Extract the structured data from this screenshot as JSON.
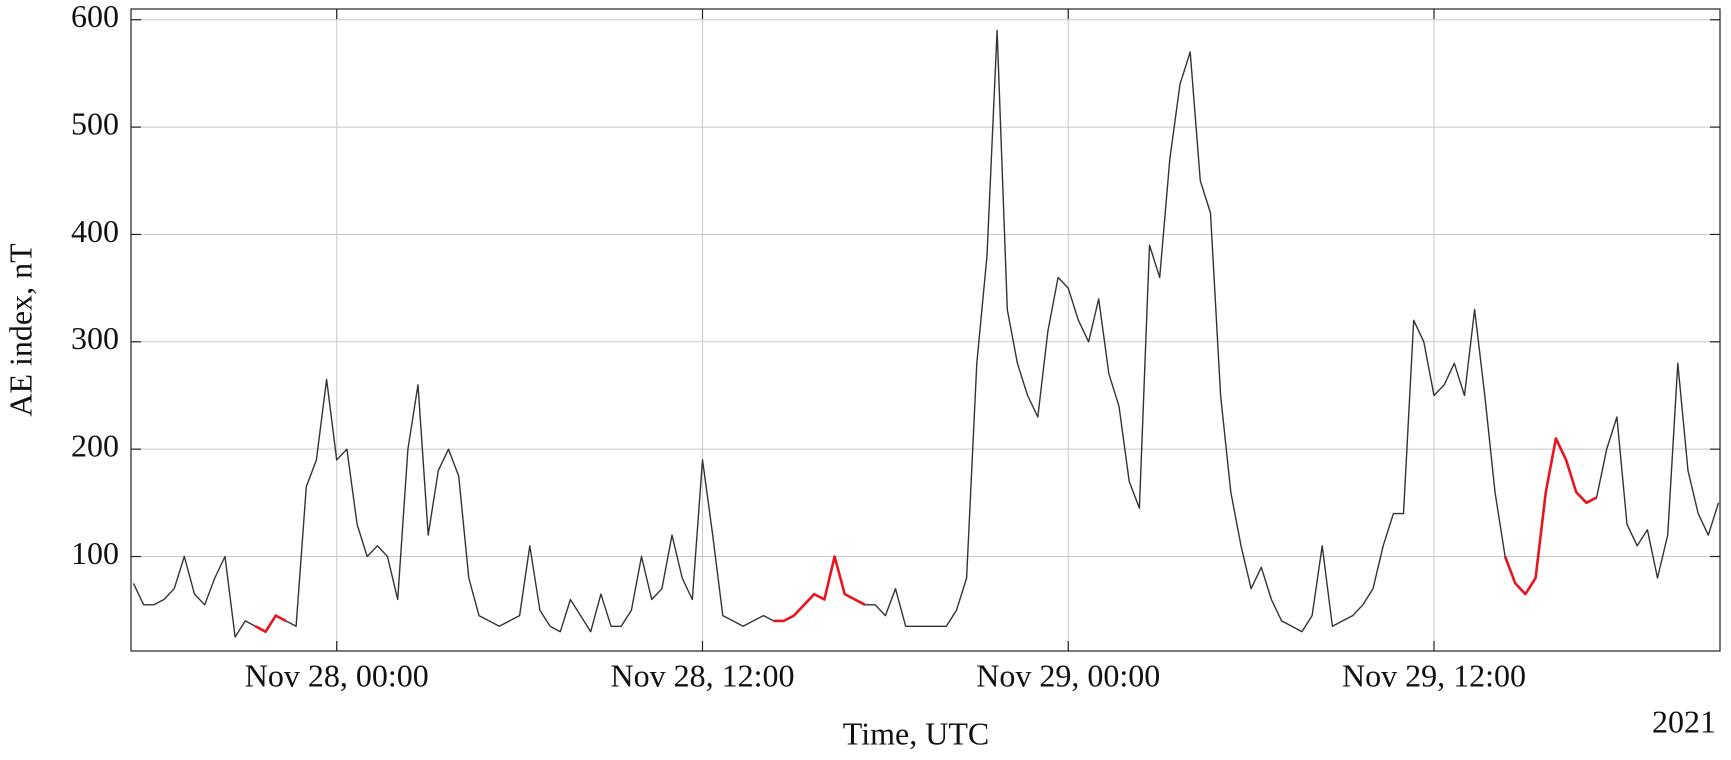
{
  "chart_data": {
    "type": "line",
    "ylabel": "AE index, nT",
    "xlabel": "Time, UTC",
    "xaxis_note": "2021",
    "ylim": [
      12,
      610
    ],
    "yticks": [
      100,
      200,
      300,
      400,
      500,
      600
    ],
    "xlim": [
      "2021-11-27T17:15",
      "2021-11-29T21:23"
    ],
    "xticks": [
      {
        "value": "2021-11-28T00:00",
        "label": "Nov 28, 00:00"
      },
      {
        "value": "2021-11-28T12:00",
        "label": "Nov 28, 12:00"
      },
      {
        "value": "2021-11-29T00:00",
        "label": "Nov 29, 00:00"
      },
      {
        "value": "2021-11-29T12:00",
        "label": "Nov 29, 12:00"
      }
    ],
    "grid": true,
    "x": [
      "2021-11-27T17:20",
      "2021-11-27T17:40",
      "2021-11-27T18:00",
      "2021-11-27T18:20",
      "2021-11-27T18:40",
      "2021-11-27T19:00",
      "2021-11-27T19:20",
      "2021-11-27T19:40",
      "2021-11-27T20:00",
      "2021-11-27T20:20",
      "2021-11-27T20:40",
      "2021-11-27T21:00",
      "2021-11-27T21:20",
      "2021-11-27T21:40",
      "2021-11-27T22:00",
      "2021-11-27T22:20",
      "2021-11-27T22:40",
      "2021-11-27T23:00",
      "2021-11-27T23:20",
      "2021-11-27T23:40",
      "2021-11-28T00:00",
      "2021-11-28T00:20",
      "2021-11-28T00:40",
      "2021-11-28T01:00",
      "2021-11-28T01:20",
      "2021-11-28T01:40",
      "2021-11-28T02:00",
      "2021-11-28T02:20",
      "2021-11-28T02:40",
      "2021-11-28T03:00",
      "2021-11-28T03:20",
      "2021-11-28T03:40",
      "2021-11-28T04:00",
      "2021-11-28T04:20",
      "2021-11-28T04:40",
      "2021-11-28T05:00",
      "2021-11-28T05:20",
      "2021-11-28T05:40",
      "2021-11-28T06:00",
      "2021-11-28T06:20",
      "2021-11-28T06:40",
      "2021-11-28T07:00",
      "2021-11-28T07:20",
      "2021-11-28T07:40",
      "2021-11-28T08:00",
      "2021-11-28T08:20",
      "2021-11-28T08:40",
      "2021-11-28T09:00",
      "2021-11-28T09:20",
      "2021-11-28T09:40",
      "2021-11-28T10:00",
      "2021-11-28T10:20",
      "2021-11-28T10:40",
      "2021-11-28T11:00",
      "2021-11-28T11:20",
      "2021-11-28T11:40",
      "2021-11-28T12:00",
      "2021-11-28T12:20",
      "2021-11-28T12:40",
      "2021-11-28T13:00",
      "2021-11-28T13:20",
      "2021-11-28T13:40",
      "2021-11-28T14:00",
      "2021-11-28T14:20",
      "2021-11-28T14:40",
      "2021-11-28T15:00",
      "2021-11-28T15:20",
      "2021-11-28T15:40",
      "2021-11-28T16:00",
      "2021-11-28T16:20",
      "2021-11-28T16:40",
      "2021-11-28T17:00",
      "2021-11-28T17:20",
      "2021-11-28T17:40",
      "2021-11-28T18:00",
      "2021-11-28T18:20",
      "2021-11-28T18:40",
      "2021-11-28T19:00",
      "2021-11-28T19:20",
      "2021-11-28T19:40",
      "2021-11-28T20:00",
      "2021-11-28T20:20",
      "2021-11-28T20:40",
      "2021-11-28T21:00",
      "2021-11-28T21:20",
      "2021-11-28T21:40",
      "2021-11-28T22:00",
      "2021-11-28T22:20",
      "2021-11-28T22:40",
      "2021-11-28T23:00",
      "2021-11-28T23:20",
      "2021-11-28T23:40",
      "2021-11-29T00:00",
      "2021-11-29T00:20",
      "2021-11-29T00:40",
      "2021-11-29T01:00",
      "2021-11-29T01:20",
      "2021-11-29T01:40",
      "2021-11-29T02:00",
      "2021-11-29T02:20",
      "2021-11-29T02:40",
      "2021-11-29T03:00",
      "2021-11-29T03:20",
      "2021-11-29T03:40",
      "2021-11-29T04:00",
      "2021-11-29T04:20",
      "2021-11-29T04:40",
      "2021-11-29T05:00",
      "2021-11-29T05:20",
      "2021-11-29T05:40",
      "2021-11-29T06:00",
      "2021-11-29T06:20",
      "2021-11-29T06:40",
      "2021-11-29T07:00",
      "2021-11-29T07:20",
      "2021-11-29T07:40",
      "2021-11-29T08:00",
      "2021-11-29T08:20",
      "2021-11-29T08:40",
      "2021-11-29T09:00",
      "2021-11-29T09:20",
      "2021-11-29T09:40",
      "2021-11-29T10:00",
      "2021-11-29T10:20",
      "2021-11-29T10:40",
      "2021-11-29T11:00",
      "2021-11-29T11:20",
      "2021-11-29T11:40",
      "2021-11-29T12:00",
      "2021-11-29T12:20",
      "2021-11-29T12:40",
      "2021-11-29T13:00",
      "2021-11-29T13:20",
      "2021-11-29T13:40",
      "2021-11-29T14:00",
      "2021-11-29T14:20",
      "2021-11-29T14:40",
      "2021-11-29T15:00",
      "2021-11-29T15:20",
      "2021-11-29T15:40",
      "2021-11-29T16:00",
      "2021-11-29T16:20",
      "2021-11-29T16:40",
      "2021-11-29T17:00",
      "2021-11-29T17:20",
      "2021-11-29T17:40",
      "2021-11-29T18:00",
      "2021-11-29T18:20",
      "2021-11-29T18:40",
      "2021-11-29T19:00",
      "2021-11-29T19:20",
      "2021-11-29T19:40",
      "2021-11-29T20:00",
      "2021-11-29T20:20",
      "2021-11-29T20:40",
      "2021-11-29T21:00",
      "2021-11-29T21:20"
    ],
    "series": [
      {
        "color": "#333333",
        "values": [
          75,
          55,
          55,
          60,
          70,
          100,
          65,
          55,
          80,
          100,
          25,
          40,
          35,
          30,
          45,
          40,
          35,
          165,
          190,
          265,
          190,
          200,
          130,
          100,
          110,
          100,
          60,
          200,
          260,
          120,
          180,
          200,
          175,
          80,
          45,
          40,
          35,
          40,
          45,
          110,
          50,
          35,
          30,
          60,
          45,
          30,
          65,
          35,
          35,
          50,
          100,
          60,
          70,
          120,
          80,
          60,
          190,
          120,
          45,
          40,
          35,
          40,
          45,
          40,
          40,
          45,
          55,
          65,
          60,
          100,
          65,
          60,
          55,
          55,
          45,
          70,
          35,
          35,
          35,
          35,
          35,
          50,
          80,
          280,
          380,
          590,
          330,
          280,
          250,
          230,
          310,
          360,
          350,
          320,
          300,
          340,
          270,
          240,
          170,
          145,
          390,
          360,
          470,
          540,
          570,
          450,
          420,
          250,
          160,
          110,
          70,
          90,
          60,
          40,
          35,
          30,
          45,
          110,
          35,
          40,
          45,
          55,
          70,
          110,
          140,
          140,
          320,
          300,
          250,
          260,
          280,
          250,
          330,
          250,
          160,
          100,
          75,
          65,
          80,
          160,
          210,
          190,
          160,
          150,
          155,
          200,
          230,
          130,
          110,
          125,
          80,
          120,
          280,
          180,
          140,
          120,
          150
        ]
      },
      {
        "color": "#e8141e",
        "values": [
          null,
          null,
          null,
          null,
          null,
          null,
          null,
          null,
          null,
          null,
          null,
          null,
          35,
          30,
          45,
          40,
          null,
          null,
          null,
          null,
          null,
          null,
          null,
          null,
          null,
          null,
          null,
          null,
          null,
          null,
          null,
          null,
          null,
          null,
          null,
          null,
          null,
          null,
          null,
          null,
          null,
          null,
          null,
          null,
          null,
          null,
          null,
          null,
          null,
          null,
          null,
          null,
          null,
          null,
          null,
          null,
          null,
          null,
          null,
          null,
          null,
          null,
          null,
          40,
          40,
          45,
          55,
          65,
          60,
          100,
          65,
          60,
          55,
          null,
          null,
          null,
          null,
          null,
          null,
          null,
          null,
          null,
          null,
          null,
          null,
          null,
          null,
          null,
          null,
          null,
          null,
          null,
          null,
          null,
          null,
          null,
          null,
          null,
          null,
          null,
          null,
          null,
          null,
          null,
          null,
          null,
          null,
          null,
          null,
          null,
          null,
          null,
          null,
          null,
          null,
          null,
          null,
          null,
          null,
          null,
          null,
          null,
          null,
          null,
          null,
          null,
          null,
          null,
          null,
          null,
          null,
          null,
          null,
          null,
          null,
          100,
          75,
          65,
          80,
          160,
          210,
          190,
          160,
          150,
          155,
          null,
          null,
          null,
          null,
          null,
          null,
          null,
          null,
          null,
          null,
          null,
          null
        ]
      }
    ]
  }
}
